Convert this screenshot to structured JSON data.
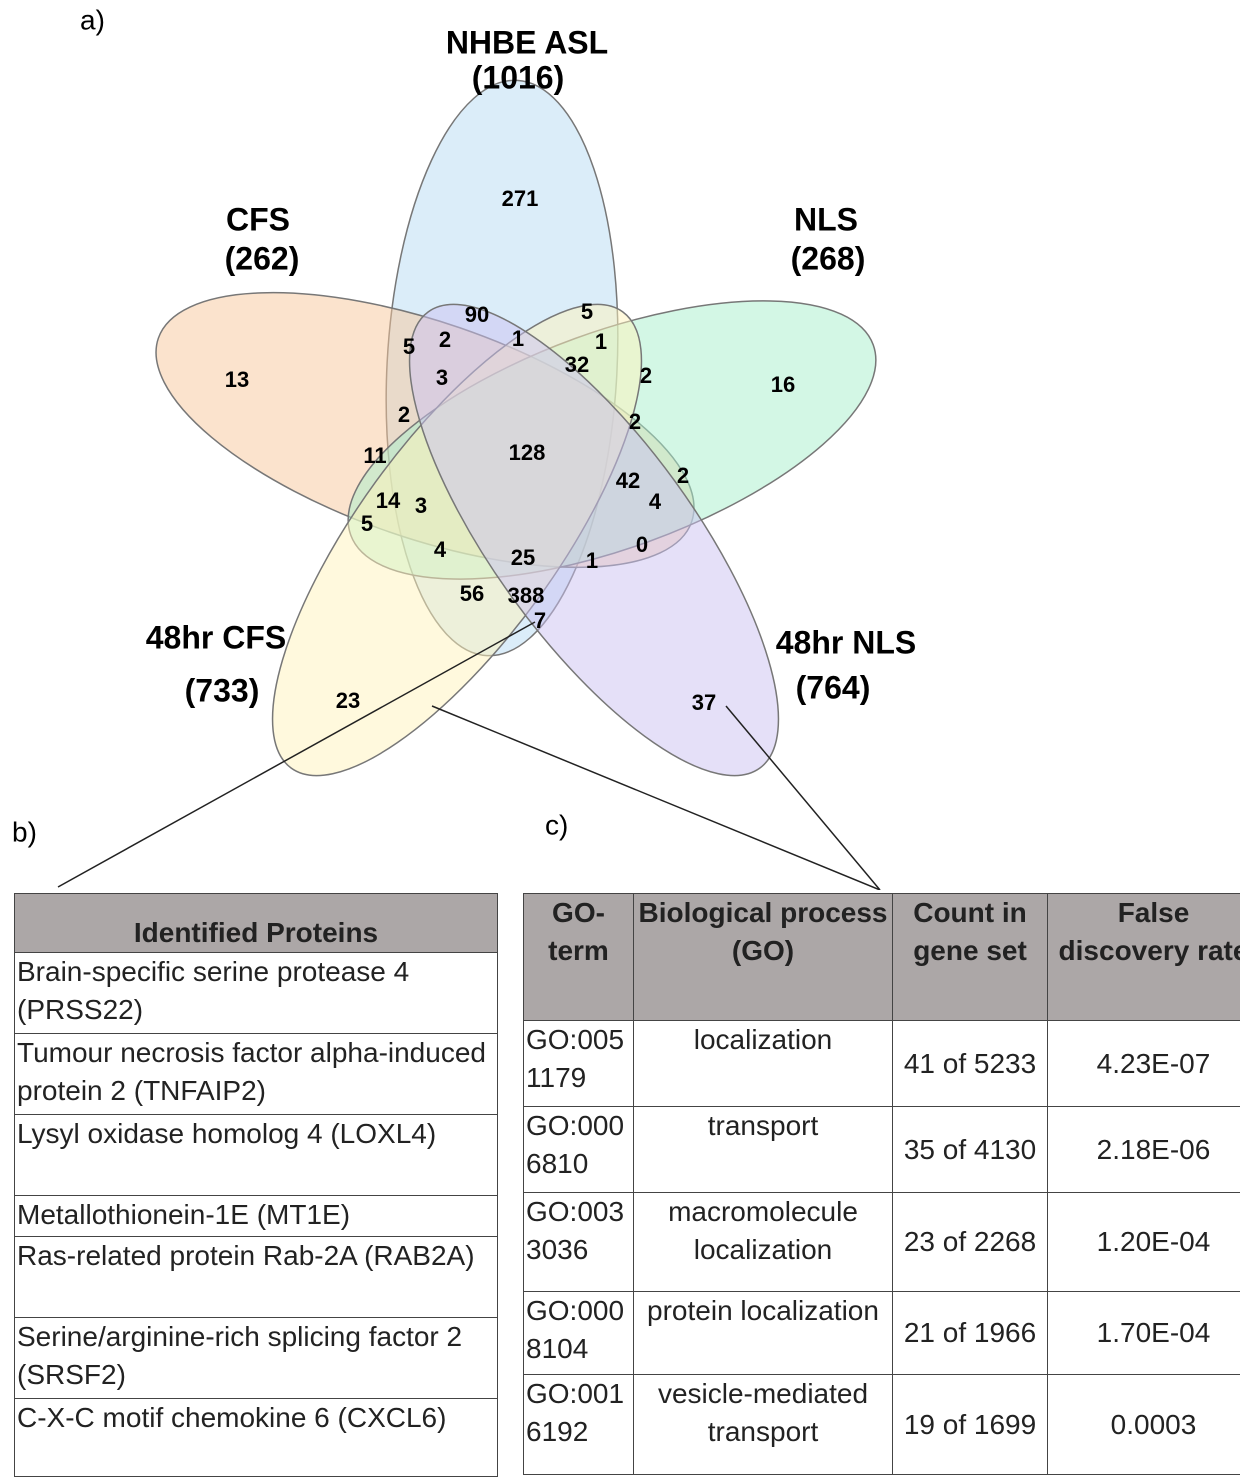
{
  "panels": {
    "a": "a)",
    "b": "b)",
    "c": "c)"
  },
  "venn": {
    "sets": [
      {
        "name": "NHBE ASL",
        "count": "(1016)"
      },
      {
        "name": "CFS",
        "count": "(262)"
      },
      {
        "name": "NLS",
        "count": "(268)"
      },
      {
        "name": "48hr CFS",
        "count": "(733)"
      },
      {
        "name": "48hr NLS",
        "count": "(764)"
      }
    ],
    "regions": [
      "271",
      "90",
      "5",
      "5",
      "2",
      "1",
      "1",
      "32",
      "3",
      "2",
      "16",
      "13",
      "2",
      "2",
      "11",
      "128",
      "42",
      "2",
      "14",
      "3",
      "4",
      "5",
      "4",
      "25",
      "0",
      "1",
      "56",
      "388",
      "7",
      "23",
      "37"
    ]
  },
  "proteins": {
    "header": "Identified Proteins",
    "rows": [
      "Brain-specific serine protease 4 (PRSS22)",
      "Tumour necrosis factor alpha-induced protein 2 (TNFAIP2)",
      "Lysyl oxidase homolog 4 (LOXL4)",
      "Metallothionein-1E (MT1E)",
      "Ras-related protein Rab-2A (RAB2A)",
      "Serine/arginine-rich splicing factor 2 (SRSF2)",
      "C-X-C motif chemokine 6 (CXCL6)"
    ]
  },
  "go_table": {
    "header": [
      "GO-term",
      "Biological process (GO)",
      "Count in gene set",
      "False discovery rate"
    ],
    "rows": [
      [
        "GO:0051179",
        "localization",
        "41 of 5233",
        "4.23E-07"
      ],
      [
        "GO:0006810",
        "transport",
        "35 of 4130",
        "2.18E-06"
      ],
      [
        "GO:0033036",
        "macromolecule localization",
        "23 of 2268",
        "1.20E-04"
      ],
      [
        "GO:0008104",
        "protein localization",
        "21 of 1966",
        "1.70E-04"
      ],
      [
        "GO:0016192",
        "vesicle-mediated transport",
        "19 of 1699",
        "0.0003"
      ]
    ]
  }
}
